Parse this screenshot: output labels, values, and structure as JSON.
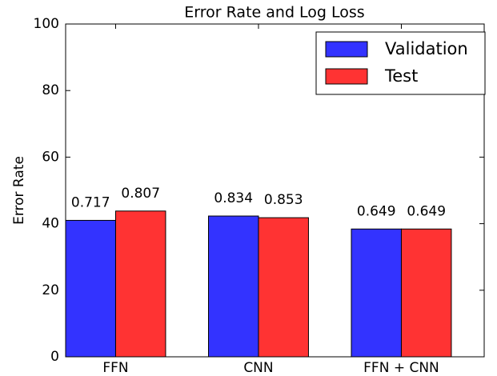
{
  "chart_data": {
    "type": "bar",
    "title": "Error Rate and Log Loss",
    "y_label": "Error Rate",
    "categories": [
      "FFN",
      "CNN",
      "FFN + CNN"
    ],
    "series": [
      {
        "name": "Validation",
        "color": "#3333ff",
        "values": [
          41,
          42.3,
          38.4
        ],
        "log_loss": [
          0.717,
          0.834,
          0.649
        ]
      },
      {
        "name": "Test",
        "color": "#ff3333",
        "values": [
          43.8,
          41.8,
          38.4
        ],
        "log_loss": [
          0.807,
          0.853,
          0.649
        ]
      }
    ],
    "ylim": [
      0,
      100
    ],
    "yticks": [
      0,
      20,
      40,
      60,
      80,
      100
    ],
    "legend": "upper right"
  }
}
